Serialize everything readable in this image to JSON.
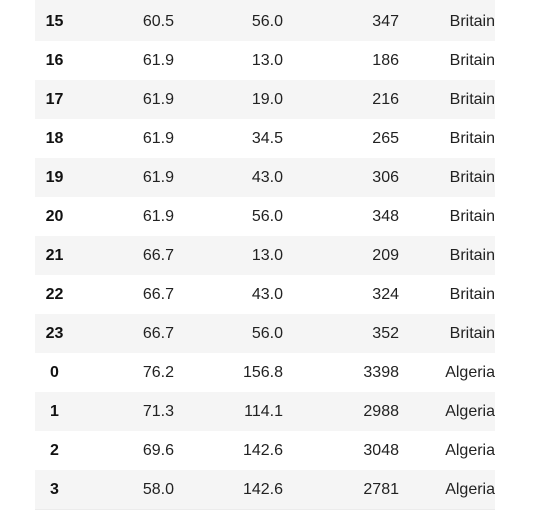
{
  "table": {
    "rows": [
      {
        "index": "15",
        "c1": "60.5",
        "c2": "56.0",
        "c3": "347",
        "c4": "Britain"
      },
      {
        "index": "16",
        "c1": "61.9",
        "c2": "13.0",
        "c3": "186",
        "c4": "Britain"
      },
      {
        "index": "17",
        "c1": "61.9",
        "c2": "19.0",
        "c3": "216",
        "c4": "Britain"
      },
      {
        "index": "18",
        "c1": "61.9",
        "c2": "34.5",
        "c3": "265",
        "c4": "Britain"
      },
      {
        "index": "19",
        "c1": "61.9",
        "c2": "43.0",
        "c3": "306",
        "c4": "Britain"
      },
      {
        "index": "20",
        "c1": "61.9",
        "c2": "56.0",
        "c3": "348",
        "c4": "Britain"
      },
      {
        "index": "21",
        "c1": "66.7",
        "c2": "13.0",
        "c3": "209",
        "c4": "Britain"
      },
      {
        "index": "22",
        "c1": "66.7",
        "c2": "43.0",
        "c3": "324",
        "c4": "Britain"
      },
      {
        "index": "23",
        "c1": "66.7",
        "c2": "56.0",
        "c3": "352",
        "c4": "Britain"
      },
      {
        "index": "0",
        "c1": "76.2",
        "c2": "156.8",
        "c3": "3398",
        "c4": "Algeria"
      },
      {
        "index": "1",
        "c1": "71.3",
        "c2": "114.1",
        "c3": "2988",
        "c4": "Algeria"
      },
      {
        "index": "2",
        "c1": "69.6",
        "c2": "142.6",
        "c3": "3048",
        "c4": "Algeria"
      },
      {
        "index": "3",
        "c1": "58.0",
        "c2": "142.6",
        "c3": "2781",
        "c4": "Algeria"
      }
    ]
  },
  "colors": {
    "stripe": "#f5f5f5",
    "background": "#ffffff",
    "text": "#222222"
  }
}
